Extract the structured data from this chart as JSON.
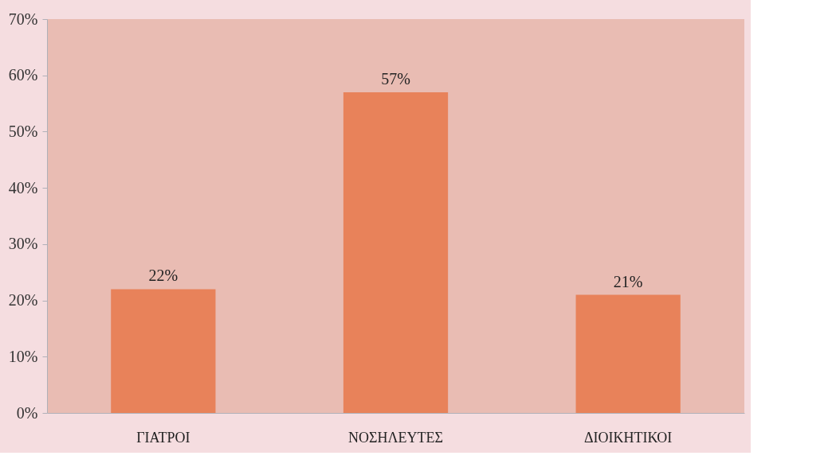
{
  "chart_data": {
    "type": "bar",
    "categories": [
      "ΓΙΑΤΡΟΙ",
      "ΝΟΣΗΛΕΥΤΕΣ",
      "ΔΙΟΙΚΗΤΙΚΟΙ"
    ],
    "values": [
      22,
      57,
      21
    ],
    "value_labels": [
      "22%",
      "57%",
      "21%"
    ],
    "color": "#e8825a",
    "ylim": [
      0,
      70
    ],
    "yticks": [
      {
        "value": 0,
        "label": "0%"
      },
      {
        "value": 10,
        "label": "10%"
      },
      {
        "value": 20,
        "label": "20%"
      },
      {
        "value": 30,
        "label": "30%"
      },
      {
        "value": 40,
        "label": "40%"
      },
      {
        "value": 50,
        "label": "50%"
      },
      {
        "value": 60,
        "label": "60%"
      },
      {
        "value": 70,
        "label": "70%"
      }
    ],
    "grid": false
  }
}
